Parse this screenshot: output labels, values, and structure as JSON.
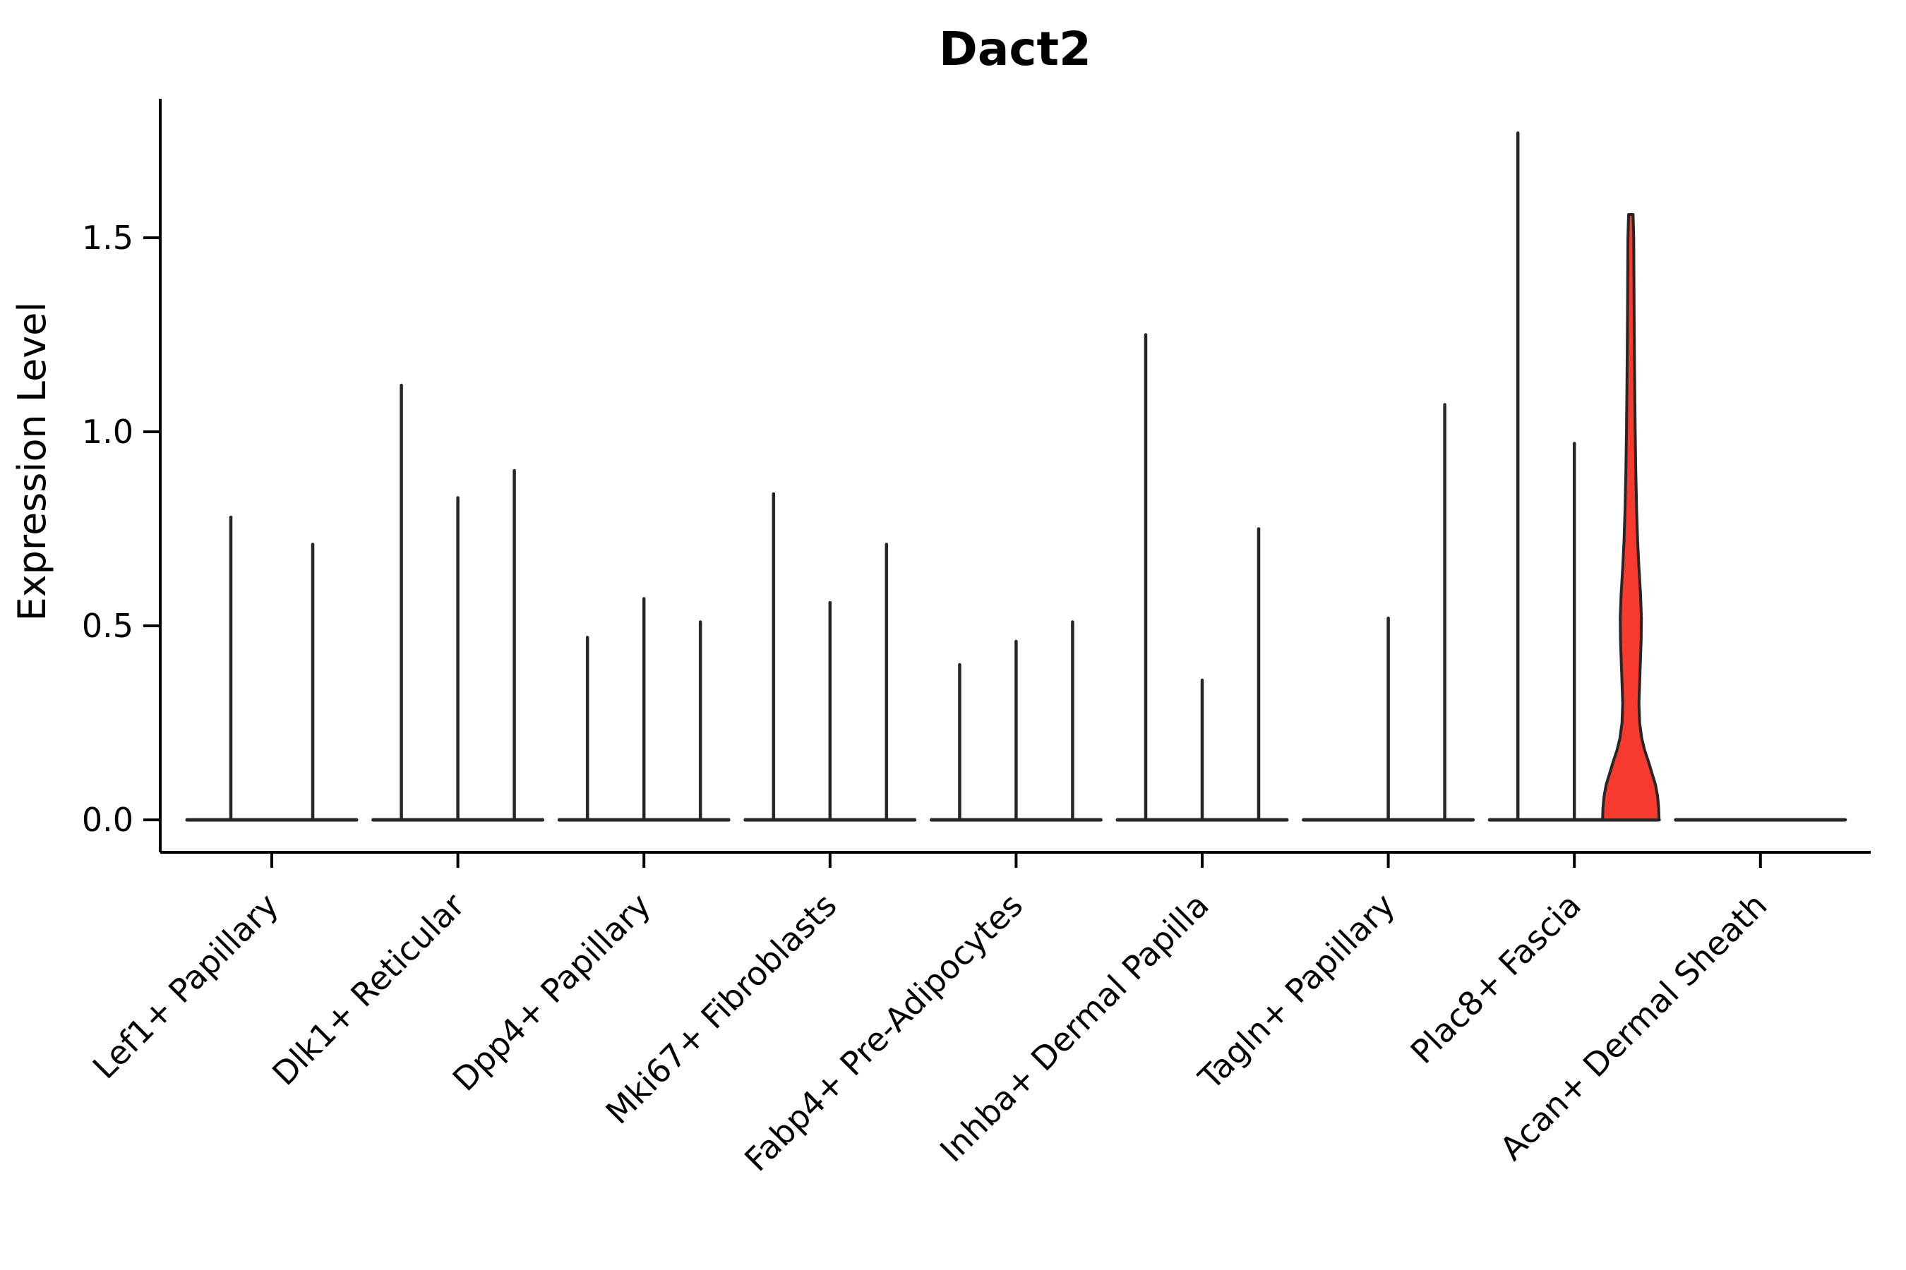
{
  "chart_data": {
    "type": "violin",
    "title": "Dact2",
    "ylabel": "Expression Level",
    "xlabel": "",
    "ylim": [
      -0.08,
      1.86
    ],
    "yticks": [
      0.0,
      0.5,
      1.0,
      1.5
    ],
    "ytick_labels": [
      "0.0",
      "0.5",
      "1.0",
      "1.5"
    ],
    "grid": false,
    "legend": "none",
    "background_color": "#ffffff",
    "line_color": "#262626",
    "spine_color": "#000000",
    "highlight_color": "#f83a2e",
    "categories": [
      {
        "label": "Lef1+ Papillary",
        "violin_maxes": [
          0.78,
          0.71
        ]
      },
      {
        "label": "Dlk1+ Reticular",
        "violin_maxes": [
          1.12,
          0.83,
          0.9
        ]
      },
      {
        "label": "Dpp4+ Papillary",
        "violin_maxes": [
          0.47,
          0.57,
          0.51
        ]
      },
      {
        "label": "Mki67+ Fibroblasts",
        "violin_maxes": [
          0.84,
          0.56,
          0.71
        ]
      },
      {
        "label": "Fabp4+ Pre-Adipocytes",
        "violin_maxes": [
          0.4,
          0.46,
          0.51
        ]
      },
      {
        "label": "Inhba+ Dermal Papilla",
        "violin_maxes": [
          1.25,
          0.36,
          0.75
        ]
      },
      {
        "label": "Tagln+ Papillary",
        "violin_maxes": [
          0.0,
          0.52,
          1.07
        ]
      },
      {
        "label": "Plac8+ Fascia",
        "violin_maxes": [
          1.77,
          0.97,
          1.56
        ],
        "highlight_index": 2
      },
      {
        "label": "Acan+ Dermal Sheath",
        "violin_maxes": [
          0.0,
          0.0,
          0.0
        ]
      }
    ],
    "highlight_violin": {
      "category": "Plac8+ Fascia",
      "max": 1.56,
      "fill": "#f83a2e",
      "profile_value_halfwidth": [
        [
          0.0,
          40.0
        ],
        [
          0.03,
          39.5
        ],
        [
          0.06,
          38.0
        ],
        [
          0.09,
          35.0
        ],
        [
          0.12,
          30.0
        ],
        [
          0.15,
          25.0
        ],
        [
          0.18,
          19.5
        ],
        [
          0.21,
          15.5
        ],
        [
          0.25,
          12.5
        ],
        [
          0.3,
          11.5
        ],
        [
          0.38,
          13.0
        ],
        [
          0.46,
          14.6
        ],
        [
          0.52,
          15.0
        ],
        [
          0.58,
          13.8
        ],
        [
          0.65,
          11.5
        ],
        [
          0.72,
          9.6
        ],
        [
          0.8,
          8.2
        ],
        [
          0.9,
          7.0
        ],
        [
          1.0,
          6.2
        ],
        [
          1.1,
          5.6
        ],
        [
          1.2,
          5.1
        ],
        [
          1.3,
          4.7
        ],
        [
          1.4,
          4.4
        ],
        [
          1.5,
          4.1
        ],
        [
          1.56,
          3.2
        ]
      ]
    }
  }
}
